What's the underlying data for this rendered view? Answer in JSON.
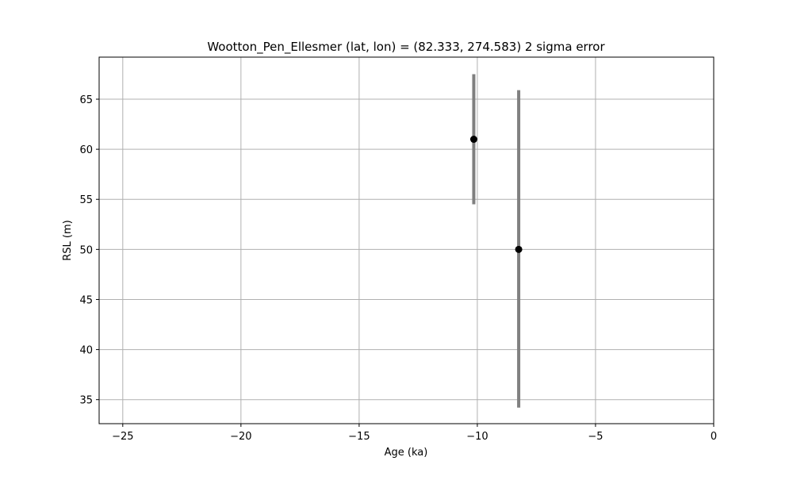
{
  "chart_data": {
    "type": "scatter",
    "title": "Wootton_Pen_Ellesmer (lat, lon) = (82.333, 274.583)  2 sigma error",
    "xlabel": "Age (ka)",
    "ylabel": "RSL (m)",
    "xlim": [
      -26,
      0
    ],
    "ylim": [
      32.6,
      69.2
    ],
    "xticks": [
      -25,
      -20,
      -15,
      -10,
      -5,
      0
    ],
    "xtick_labels": [
      "−25",
      "−20",
      "−15",
      "−10",
      "−5",
      "0"
    ],
    "yticks": [
      35,
      40,
      45,
      50,
      55,
      60,
      65
    ],
    "ytick_labels": [
      "35",
      "40",
      "45",
      "50",
      "55",
      "60",
      "65"
    ],
    "grid": true,
    "points": [
      {
        "x": -10.15,
        "y": 61.0,
        "y_low": 54.5,
        "y_high": 67.5
      },
      {
        "x": -8.25,
        "y": 50.0,
        "y_low": 34.2,
        "y_high": 65.9
      }
    ],
    "colors": {
      "marker": "#000000",
      "errorbar": "#808080",
      "grid": "#b0b0b0",
      "axes": "#000000"
    }
  }
}
